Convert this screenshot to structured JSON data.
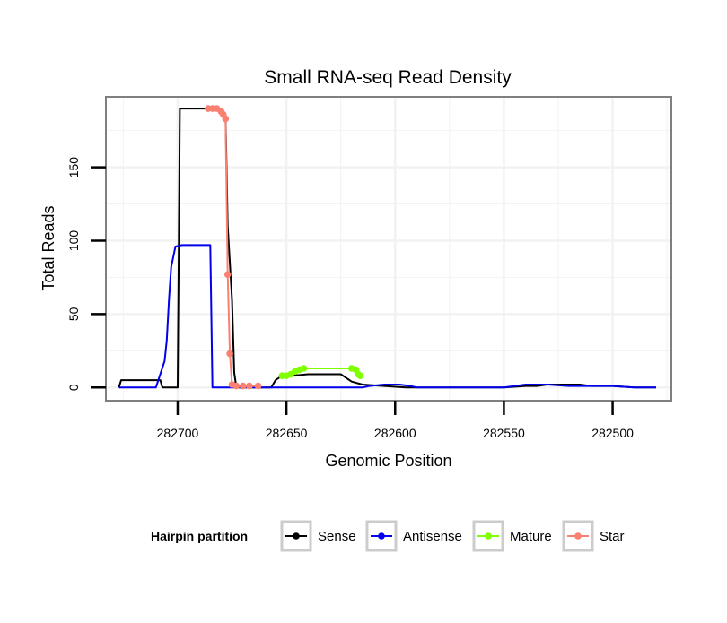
{
  "chart_data": {
    "type": "line",
    "title": "Small RNA-seq Read Density",
    "xlabel": "Genomic Position",
    "ylabel": "Total Reads",
    "x_reversed": true,
    "xlim": [
      282733,
      282473
    ],
    "ylim": [
      -9,
      198
    ],
    "x_ticks": [
      282700,
      282650,
      282600,
      282550,
      282500
    ],
    "x_tick_labels": [
      "282700",
      "282650",
      "282600",
      "282550",
      "282500"
    ],
    "y_ticks": [
      0,
      50,
      100,
      150
    ],
    "y_tick_labels": [
      "0",
      "50",
      "100",
      "150"
    ],
    "grid": true,
    "legend": {
      "title": "Hairpin partition",
      "position": "bottom",
      "entries": [
        "Sense",
        "Antisense",
        "Mature",
        "Star"
      ]
    },
    "colors": {
      "Sense": "#000000",
      "Antisense": "#0000ee",
      "Mature": "#7fff00",
      "Star": "#fa8072",
      "panel_border": "#7f7f7f",
      "grid": "#f2f2f2",
      "legend_key_border": "#cccccc"
    },
    "series": [
      {
        "name": "Sense",
        "points": [
          [
            282727,
            0
          ],
          [
            282726,
            5
          ],
          [
            282725,
            5
          ],
          [
            282710,
            5
          ],
          [
            282708,
            5
          ],
          [
            282707,
            0
          ],
          [
            282700,
            0
          ],
          [
            282699,
            190
          ],
          [
            282682,
            190
          ],
          [
            282680,
            188
          ],
          [
            282678,
            185
          ],
          [
            282677,
            110
          ],
          [
            282675,
            60
          ],
          [
            282674,
            10
          ],
          [
            282673,
            0
          ],
          [
            282660,
            0
          ],
          [
            282657,
            0
          ],
          [
            282655,
            5
          ],
          [
            282653,
            7
          ],
          [
            282648,
            8
          ],
          [
            282640,
            9
          ],
          [
            282625,
            9
          ],
          [
            282620,
            4
          ],
          [
            282615,
            2
          ],
          [
            282605,
            1
          ],
          [
            282595,
            0
          ],
          [
            282550,
            0
          ],
          [
            282540,
            1
          ],
          [
            282535,
            1
          ],
          [
            282530,
            2
          ],
          [
            282515,
            2
          ],
          [
            282510,
            1
          ],
          [
            282500,
            1
          ],
          [
            282490,
            0
          ],
          [
            282480,
            0
          ]
        ]
      },
      {
        "name": "Antisense",
        "points": [
          [
            282727,
            0
          ],
          [
            282710,
            0
          ],
          [
            282706,
            18
          ],
          [
            282705,
            32
          ],
          [
            282704,
            60
          ],
          [
            282703,
            82
          ],
          [
            282701,
            96
          ],
          [
            282698,
            97
          ],
          [
            282685,
            97
          ],
          [
            282684,
            0
          ],
          [
            282620,
            0
          ],
          [
            282615,
            0
          ],
          [
            282612,
            1
          ],
          [
            282605,
            2
          ],
          [
            282598,
            2
          ],
          [
            282593,
            1
          ],
          [
            282590,
            0
          ],
          [
            282550,
            0
          ],
          [
            282545,
            1
          ],
          [
            282540,
            2
          ],
          [
            282530,
            2
          ],
          [
            282520,
            1
          ],
          [
            282500,
            1
          ],
          [
            282490,
            0
          ],
          [
            282480,
            0
          ]
        ]
      },
      {
        "name": "Mature",
        "points": [
          [
            282652,
            8
          ],
          [
            282650,
            8
          ],
          [
            282648,
            9
          ],
          [
            282646,
            11
          ],
          [
            282644,
            12
          ],
          [
            282642,
            13
          ],
          [
            282620,
            13
          ],
          [
            282618,
            12
          ],
          [
            282617,
            9
          ],
          [
            282616,
            8
          ]
        ]
      },
      {
        "name": "Star",
        "points": [
          [
            282686,
            190
          ],
          [
            282684,
            190
          ],
          [
            282682,
            190
          ],
          [
            282680,
            188
          ],
          [
            282679,
            186
          ],
          [
            282678,
            183
          ],
          [
            282677,
            77
          ],
          [
            282676,
            23
          ],
          [
            282675,
            2
          ],
          [
            282673,
            1
          ],
          [
            282670,
            1
          ],
          [
            282667,
            1
          ],
          [
            282663,
            1
          ]
        ]
      }
    ]
  }
}
